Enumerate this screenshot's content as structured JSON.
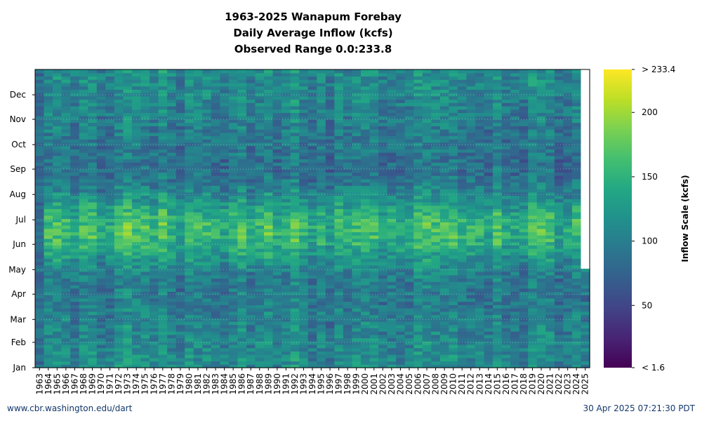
{
  "chart_data": {
    "type": "heatmap",
    "title_lines": [
      "1963-2025 Wanapum Forebay",
      "Daily Average Inflow (kcfs)",
      "Observed Range 0.0:233.8"
    ],
    "x_categories": [
      "1963",
      "1964",
      "1965",
      "1966",
      "1967",
      "1968",
      "1969",
      "1970",
      "1971",
      "1972",
      "1973",
      "1974",
      "1975",
      "1976",
      "1977",
      "1978",
      "1979",
      "1980",
      "1981",
      "1982",
      "1983",
      "1984",
      "1985",
      "1986",
      "1987",
      "1988",
      "1989",
      "1990",
      "1991",
      "1992",
      "1993",
      "1994",
      "1995",
      "1996",
      "1997",
      "1998",
      "1999",
      "2000",
      "2001",
      "2002",
      "2003",
      "2004",
      "2005",
      "2006",
      "2007",
      "2008",
      "2009",
      "2010",
      "2011",
      "2012",
      "2013",
      "2014",
      "2015",
      "2016",
      "2017",
      "2018",
      "2019",
      "2020",
      "2021",
      "2022",
      "2023",
      "2024",
      "2025"
    ],
    "y_ticks": [
      "Jan",
      "Feb",
      "Mar",
      "Apr",
      "May",
      "Jun",
      "Jul",
      "Aug",
      "Sep",
      "Oct",
      "Nov",
      "Dec"
    ],
    "colorbar": {
      "label": "Inflow Scale (kcfs)",
      "min": 1.6,
      "max": 233.4,
      "tick_labels": [
        "< 1.6",
        "50",
        "100",
        "150",
        "200",
        "> 233.4"
      ],
      "tick_values": [
        1.6,
        50,
        100,
        150,
        200,
        233.4
      ],
      "colormap": "viridis"
    },
    "grid": true
  },
  "footer": {
    "left": "www.cbr.washington.edu/dart",
    "right": "30 Apr 2025 07:21:30 PDT"
  }
}
